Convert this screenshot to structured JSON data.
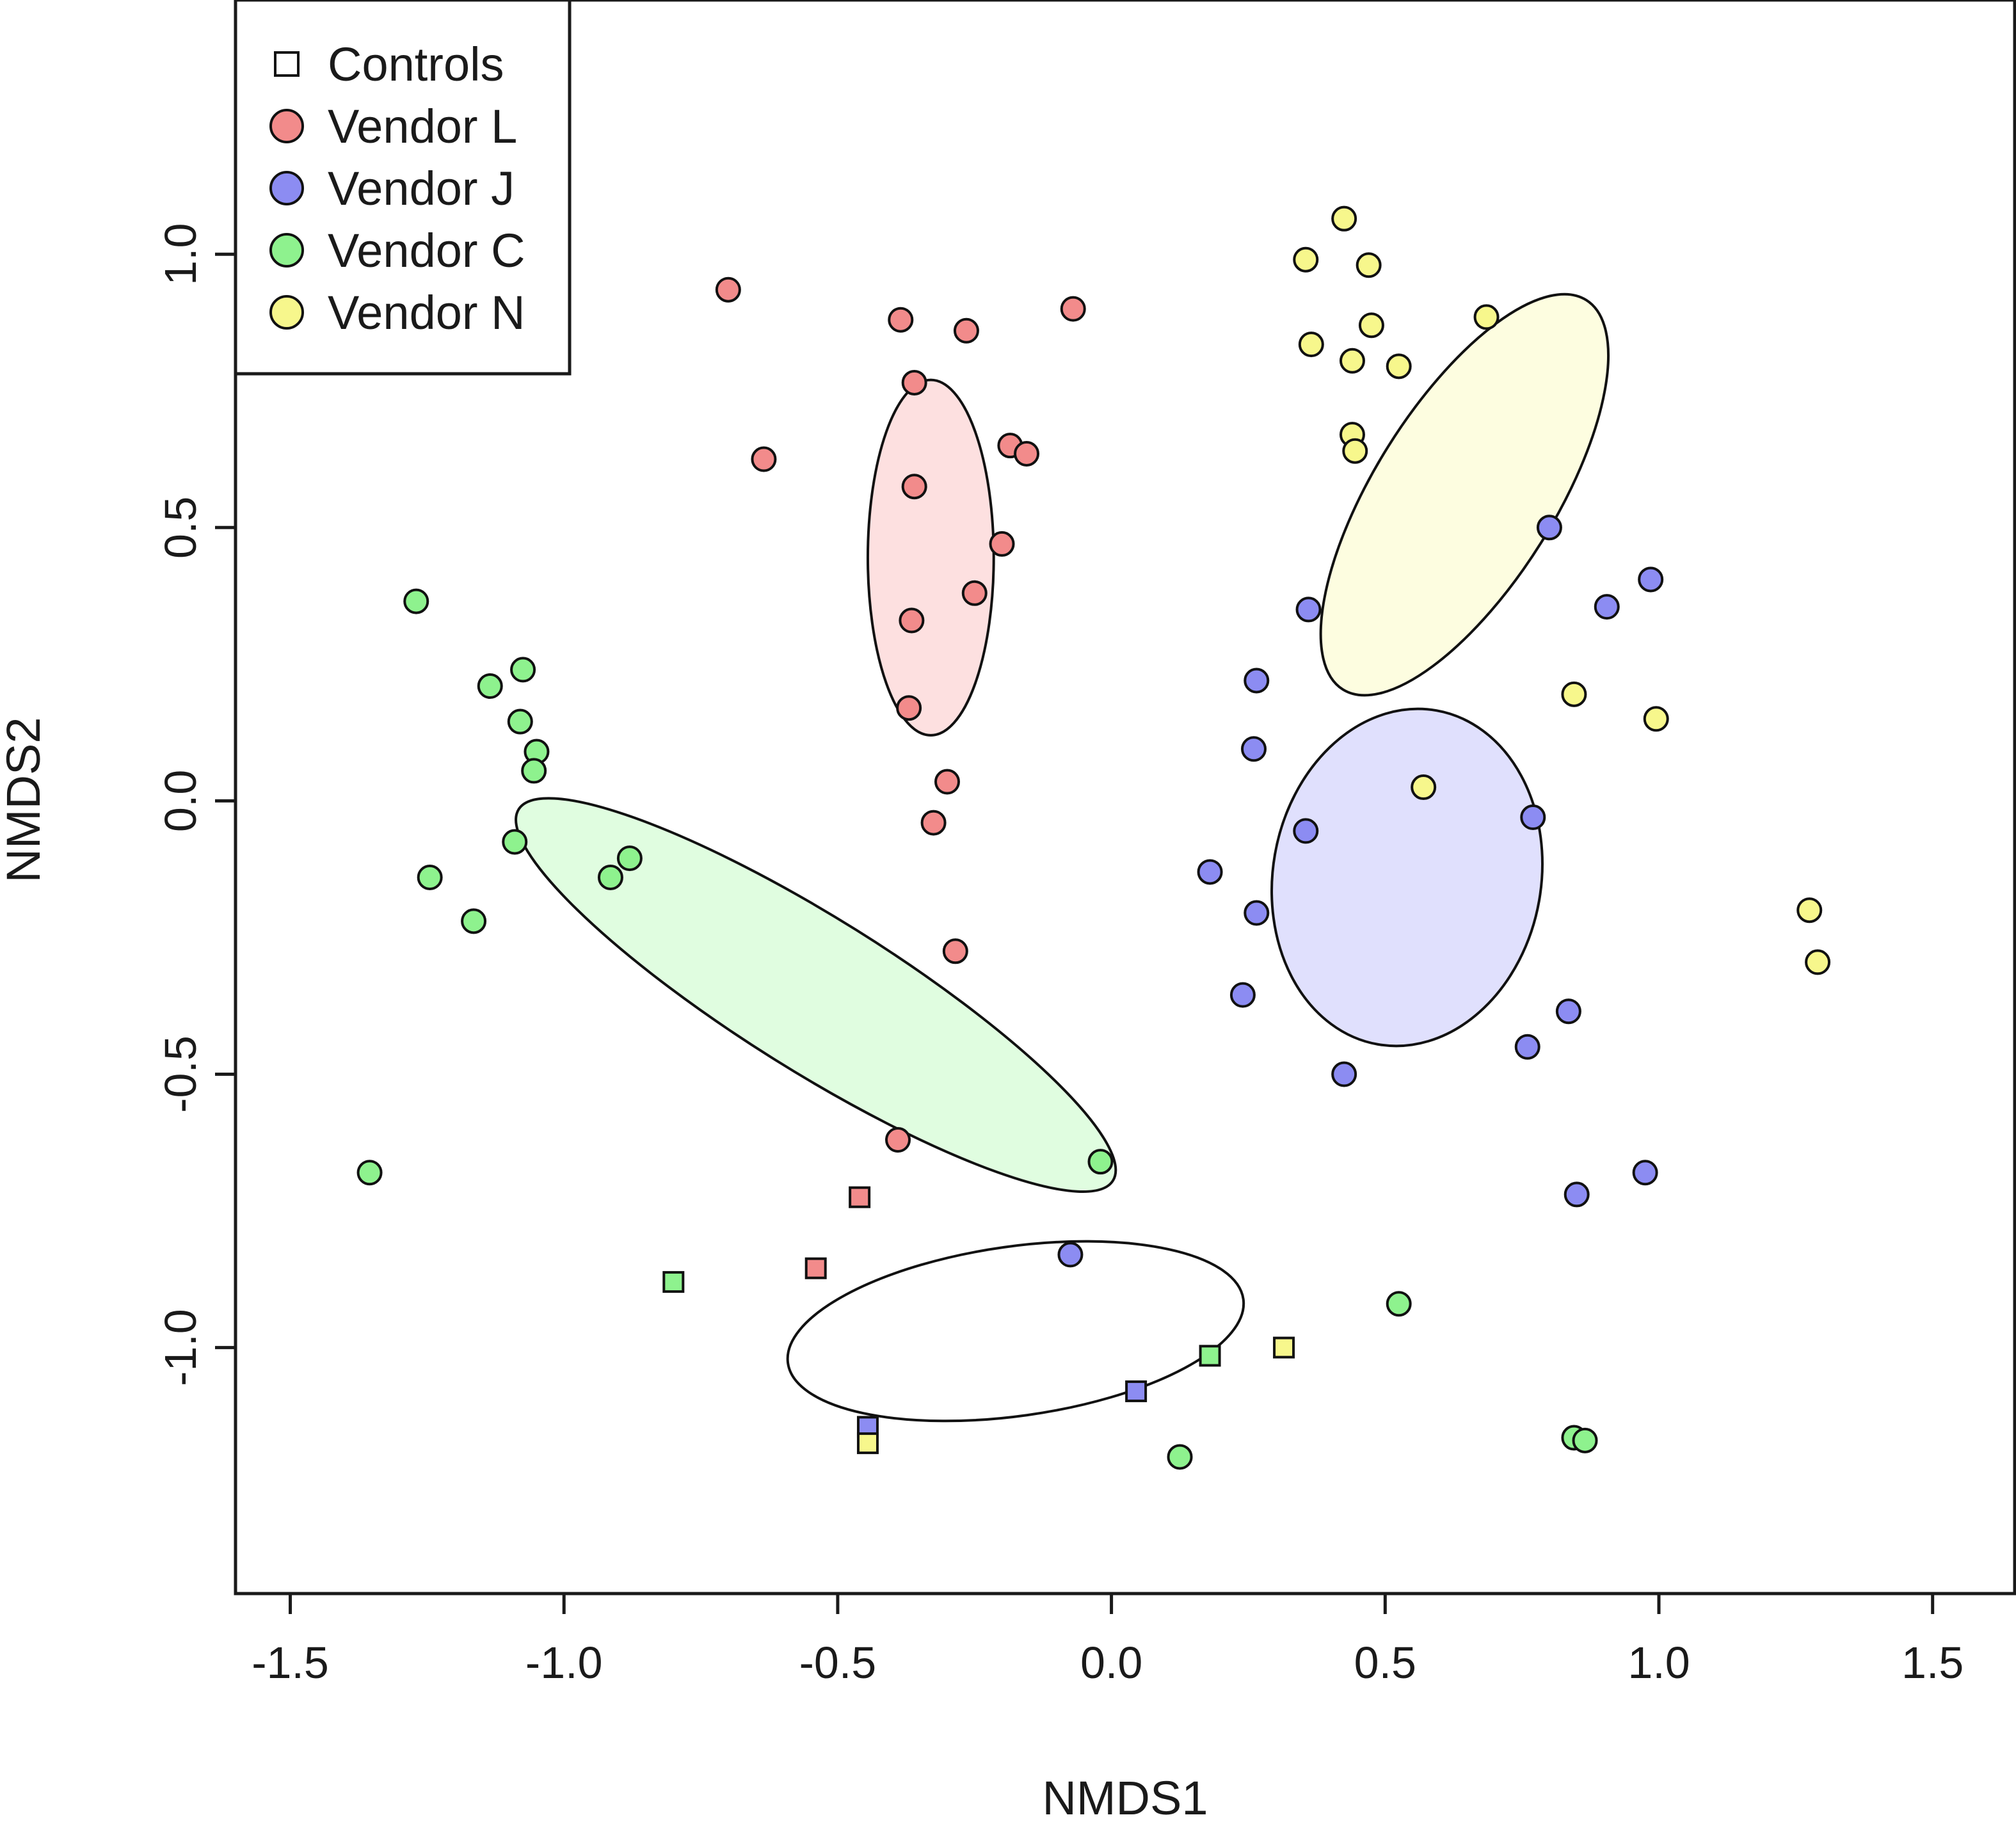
{
  "chart_data": {
    "type": "scatter",
    "title": "",
    "xlabel": "NMDS1",
    "ylabel": "NMDS2",
    "xlim": [
      -1.6,
      1.65
    ],
    "ylim": [
      -1.45,
      1.465
    ],
    "xticks": [
      -1.5,
      -1.0,
      -0.5,
      0.0,
      0.5,
      1.0,
      1.5
    ],
    "xtick_labels": [
      "-1.5",
      "-1.0",
      "-0.5",
      "0.0",
      "0.5",
      "1.0",
      "1.5"
    ],
    "yticks": [
      -1.0,
      -0.5,
      0.0,
      0.5,
      1.0
    ],
    "ytick_labels": [
      "-1.0",
      "-0.5",
      "0.0",
      "0.5",
      "1.0"
    ],
    "legend_position": "top-left",
    "legend": [
      {
        "label": "Controls",
        "marker": "square",
        "color": "#ffffff"
      },
      {
        "label": "Vendor L",
        "marker": "circle",
        "color": "#f28b8b"
      },
      {
        "label": "Vendor J",
        "marker": "circle",
        "color": "#8c8cf2"
      },
      {
        "label": "Vendor C",
        "marker": "circle",
        "color": "#8ef28e"
      },
      {
        "label": "Vendor N",
        "marker": "circle",
        "color": "#f7f78c"
      }
    ],
    "ellipses": [
      {
        "group": "Vendor L",
        "center": [
          -0.33,
          0.445
        ],
        "rx": 0.115,
        "ry": 0.325,
        "angle": 0,
        "fill": "#fde0e0"
      },
      {
        "group": "Vendor N",
        "center": [
          0.645,
          0.56
        ],
        "rx": 0.165,
        "ry": 0.42,
        "angle": 32,
        "fill": "#fdfde0"
      },
      {
        "group": "Vendor J",
        "center": [
          0.54,
          -0.14
        ],
        "rx": 0.245,
        "ry": 0.31,
        "angle": 10,
        "fill": "#e0e0fd"
      },
      {
        "group": "Vendor C",
        "center": [
          -0.54,
          -0.355
        ],
        "rx": 0.64,
        "ry": 0.14,
        "angle": 32,
        "fill": "#e0fde0"
      },
      {
        "group": "Controls",
        "center": [
          -0.175,
          -0.97
        ],
        "rx": 0.42,
        "ry": 0.155,
        "angle": -8,
        "fill": "none"
      }
    ],
    "series": [
      {
        "name": "Vendor L",
        "marker": "circle",
        "color": "#f28b8b",
        "points": [
          [
            -0.7,
            0.935
          ],
          [
            -0.385,
            0.88
          ],
          [
            -0.265,
            0.86
          ],
          [
            -0.07,
            0.9
          ],
          [
            -0.36,
            0.765
          ],
          [
            -0.635,
            0.625
          ],
          [
            -0.185,
            0.65
          ],
          [
            -0.155,
            0.635
          ],
          [
            -0.36,
            0.575
          ],
          [
            -0.2,
            0.47
          ],
          [
            -0.25,
            0.38
          ],
          [
            -0.365,
            0.33
          ],
          [
            -0.37,
            0.17
          ],
          [
            -0.3,
            0.035
          ],
          [
            -0.325,
            -0.04
          ],
          [
            -0.285,
            -0.275
          ],
          [
            -0.39,
            -0.62
          ]
        ]
      },
      {
        "name": "Vendor N",
        "marker": "circle",
        "color": "#f7f78c",
        "points": [
          [
            0.425,
            1.065
          ],
          [
            0.355,
            0.99
          ],
          [
            0.47,
            0.98
          ],
          [
            0.685,
            0.885
          ],
          [
            0.365,
            0.835
          ],
          [
            0.475,
            0.87
          ],
          [
            0.44,
            0.805
          ],
          [
            0.525,
            0.795
          ],
          [
            0.44,
            0.67
          ],
          [
            0.445,
            0.64
          ],
          [
            0.845,
            0.195
          ],
          [
            0.995,
            0.15
          ],
          [
            0.57,
            0.025
          ],
          [
            1.275,
            -0.2
          ],
          [
            1.29,
            -0.295
          ]
        ]
      },
      {
        "name": "Vendor J",
        "marker": "circle",
        "color": "#8c8cf2",
        "points": [
          [
            0.8,
            0.5
          ],
          [
            0.985,
            0.405
          ],
          [
            0.905,
            0.355
          ],
          [
            0.36,
            0.35
          ],
          [
            0.265,
            0.22
          ],
          [
            0.26,
            0.095
          ],
          [
            0.355,
            -0.055
          ],
          [
            0.77,
            -0.03
          ],
          [
            0.18,
            -0.13
          ],
          [
            0.265,
            -0.205
          ],
          [
            0.24,
            -0.355
          ],
          [
            0.835,
            -0.385
          ],
          [
            0.76,
            -0.45
          ],
          [
            0.425,
            -0.5
          ],
          [
            0.975,
            -0.68
          ],
          [
            0.85,
            -0.72
          ],
          [
            -0.075,
            -0.83
          ]
        ]
      },
      {
        "name": "Vendor C",
        "marker": "circle",
        "color": "#8ef28e",
        "points": [
          [
            -1.27,
            0.365
          ],
          [
            -1.135,
            0.21
          ],
          [
            -1.075,
            0.24
          ],
          [
            -1.08,
            0.145
          ],
          [
            -1.05,
            0.09
          ],
          [
            -1.055,
            0.055
          ],
          [
            -1.09,
            -0.075
          ],
          [
            -0.88,
            -0.105
          ],
          [
            -0.915,
            -0.14
          ],
          [
            -1.245,
            -0.14
          ],
          [
            -1.165,
            -0.22
          ],
          [
            -1.355,
            -0.68
          ],
          [
            -0.02,
            -0.66
          ],
          [
            0.525,
            -0.92
          ],
          [
            0.125,
            -1.2
          ],
          [
            0.845,
            -1.165
          ],
          [
            0.865,
            -1.17
          ]
        ]
      },
      {
        "name": "Controls",
        "marker": "square",
        "points": [
          {
            "x": -0.46,
            "y": -0.725,
            "color": "#f28b8b"
          },
          {
            "x": -0.54,
            "y": -0.855,
            "color": "#f28b8b"
          },
          {
            "x": -0.8,
            "y": -0.88,
            "color": "#8ef28e"
          },
          {
            "x": 0.18,
            "y": -1.015,
            "color": "#8ef28e"
          },
          {
            "x": 0.315,
            "y": -1.0,
            "color": "#f7f78c"
          },
          {
            "x": 0.045,
            "y": -1.08,
            "color": "#8c8cf2"
          },
          {
            "x": -0.445,
            "y": -1.145,
            "color": "#8c8cf2"
          },
          {
            "x": -0.445,
            "y": -1.175,
            "color": "#f7f78c"
          }
        ]
      }
    ]
  }
}
